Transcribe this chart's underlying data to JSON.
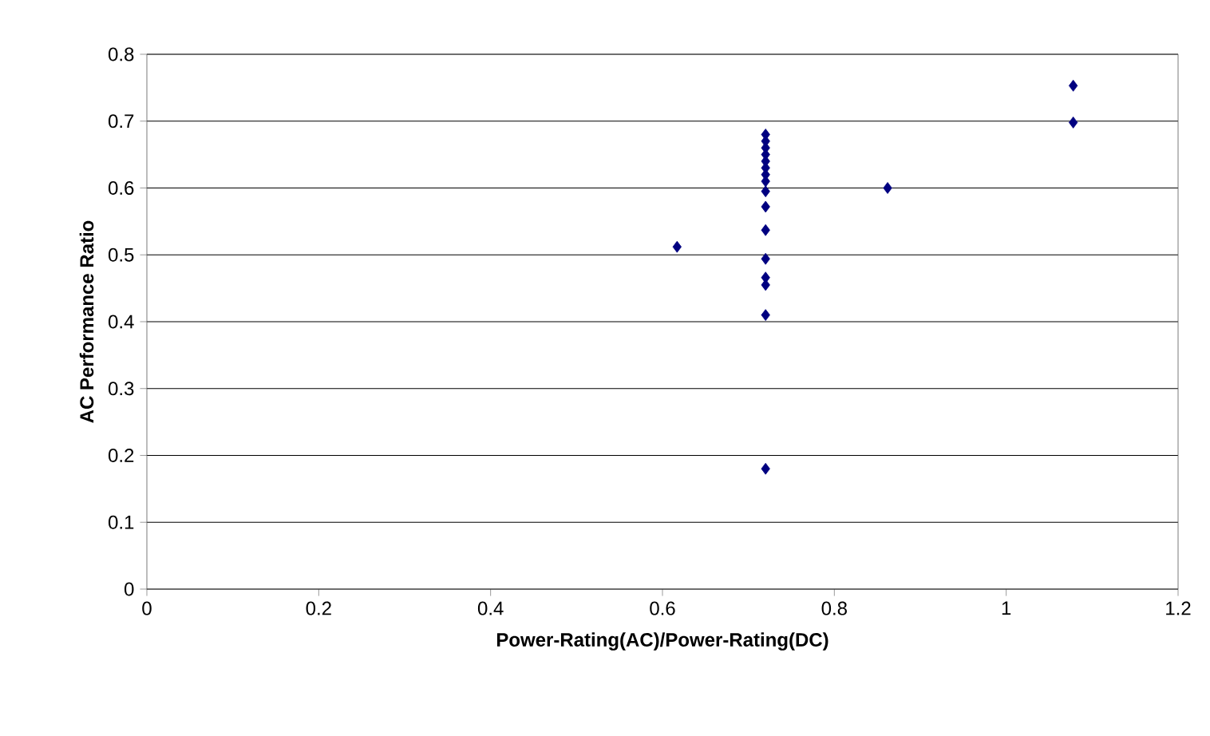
{
  "chart_data": {
    "type": "scatter",
    "xlabel": "Power-Rating(AC)/Power-Rating(DC)",
    "ylabel": "AC Performance Ratio",
    "x": [
      0.617,
      0.72,
      0.72,
      0.72,
      0.72,
      0.72,
      0.72,
      0.72,
      0.72,
      0.72,
      0.72,
      0.72,
      0.72,
      0.72,
      0.72,
      0.72,
      0.72,
      0.862,
      1.078,
      1.078
    ],
    "values": [
      0.512,
      0.68,
      0.67,
      0.66,
      0.65,
      0.64,
      0.63,
      0.62,
      0.61,
      0.595,
      0.572,
      0.537,
      0.494,
      0.466,
      0.455,
      0.41,
      0.18,
      0.6,
      0.753,
      0.698
    ],
    "color": "#000080",
    "marker": "diamond",
    "grid": "y",
    "xlim": [
      0,
      1.2
    ],
    "xticks": [
      0,
      0.2,
      0.4,
      0.6,
      0.8,
      1,
      1.2
    ],
    "ylim": [
      0,
      0.8
    ],
    "yticks": [
      0,
      0.1,
      0.2,
      0.3,
      0.4,
      0.5,
      0.6,
      0.7,
      0.8
    ]
  }
}
